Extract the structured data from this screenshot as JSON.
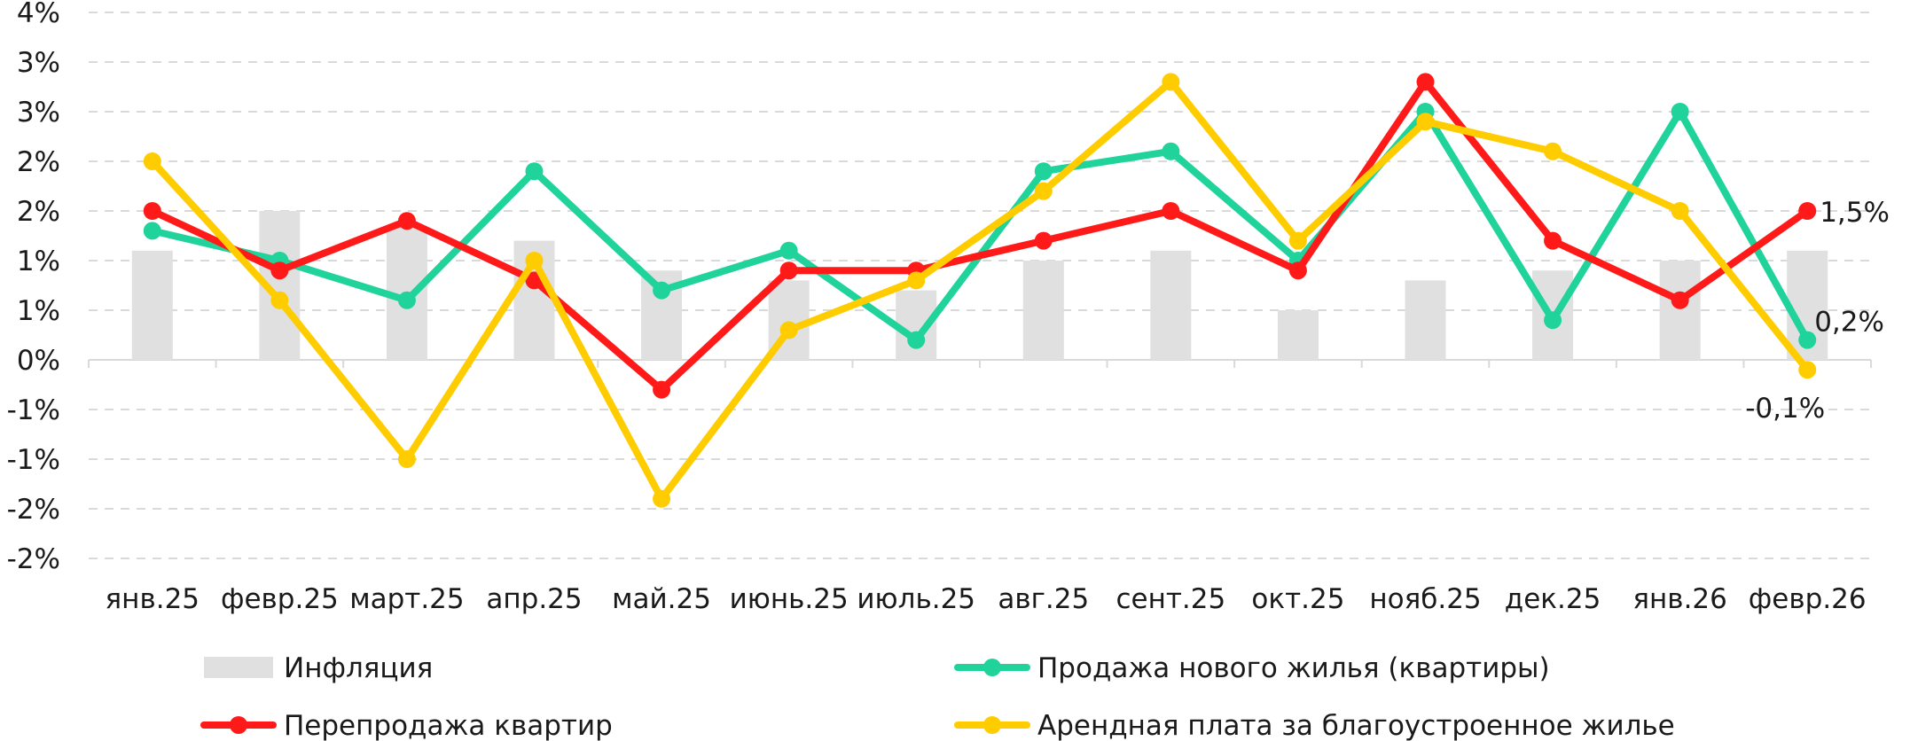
{
  "chart_data": {
    "type": "bar+line",
    "categories": [
      "янв.25",
      "февр.25",
      "март.25",
      "апр.25",
      "май.25",
      "июнь.25",
      "июль.25",
      "авг.25",
      "сент.25",
      "окт.25",
      "нояб.25",
      "дек.25",
      "янв.26",
      "февр.26"
    ],
    "y_tick_labels": [
      "4%",
      "3%",
      "3%",
      "2%",
      "2%",
      "1%",
      "1%",
      "0%",
      "-1%",
      "-1%",
      "-2%",
      "-2%"
    ],
    "ylim": [
      -2.0,
      3.5
    ],
    "grid": true,
    "legend_position": "bottom",
    "series": [
      {
        "name": "Инфляция",
        "kind": "bar",
        "color": "#e0e0e0",
        "values": [
          1.1,
          1.5,
          1.35,
          1.2,
          0.9,
          0.8,
          0.7,
          1.0,
          1.1,
          0.5,
          0.8,
          0.9,
          1.0,
          1.1
        ]
      },
      {
        "name": "Продажа нового жилья (квартиры)",
        "kind": "line",
        "color": "#1fd39b",
        "values": [
          1.3,
          1.0,
          0.6,
          1.9,
          0.7,
          1.1,
          0.2,
          1.9,
          2.1,
          1.0,
          2.5,
          0.4,
          2.5,
          0.2
        ]
      },
      {
        "name": "Перепродажа квартир",
        "kind": "line",
        "color": "#ff1a1a",
        "values": [
          1.5,
          0.9,
          1.4,
          0.8,
          -0.3,
          0.9,
          0.9,
          1.2,
          1.5,
          0.9,
          2.8,
          1.2,
          0.6,
          1.5
        ]
      },
      {
        "name": "Арендная плата за благоустроенное жилье",
        "kind": "line",
        "color": "#ffcc00",
        "values": [
          2.0,
          0.6,
          -1.0,
          1.0,
          -1.4,
          0.3,
          0.8,
          1.7,
          2.8,
          1.2,
          2.4,
          2.1,
          1.5,
          -0.1
        ]
      }
    ],
    "end_labels": [
      {
        "series": "Перепродажа квартир",
        "text": "1,5%"
      },
      {
        "series": "Продажа нового жилья (квартиры)",
        "text": "0,2%"
      },
      {
        "series": "Арендная плата за благоустроенное жилье",
        "text": "-0,1%"
      }
    ]
  }
}
